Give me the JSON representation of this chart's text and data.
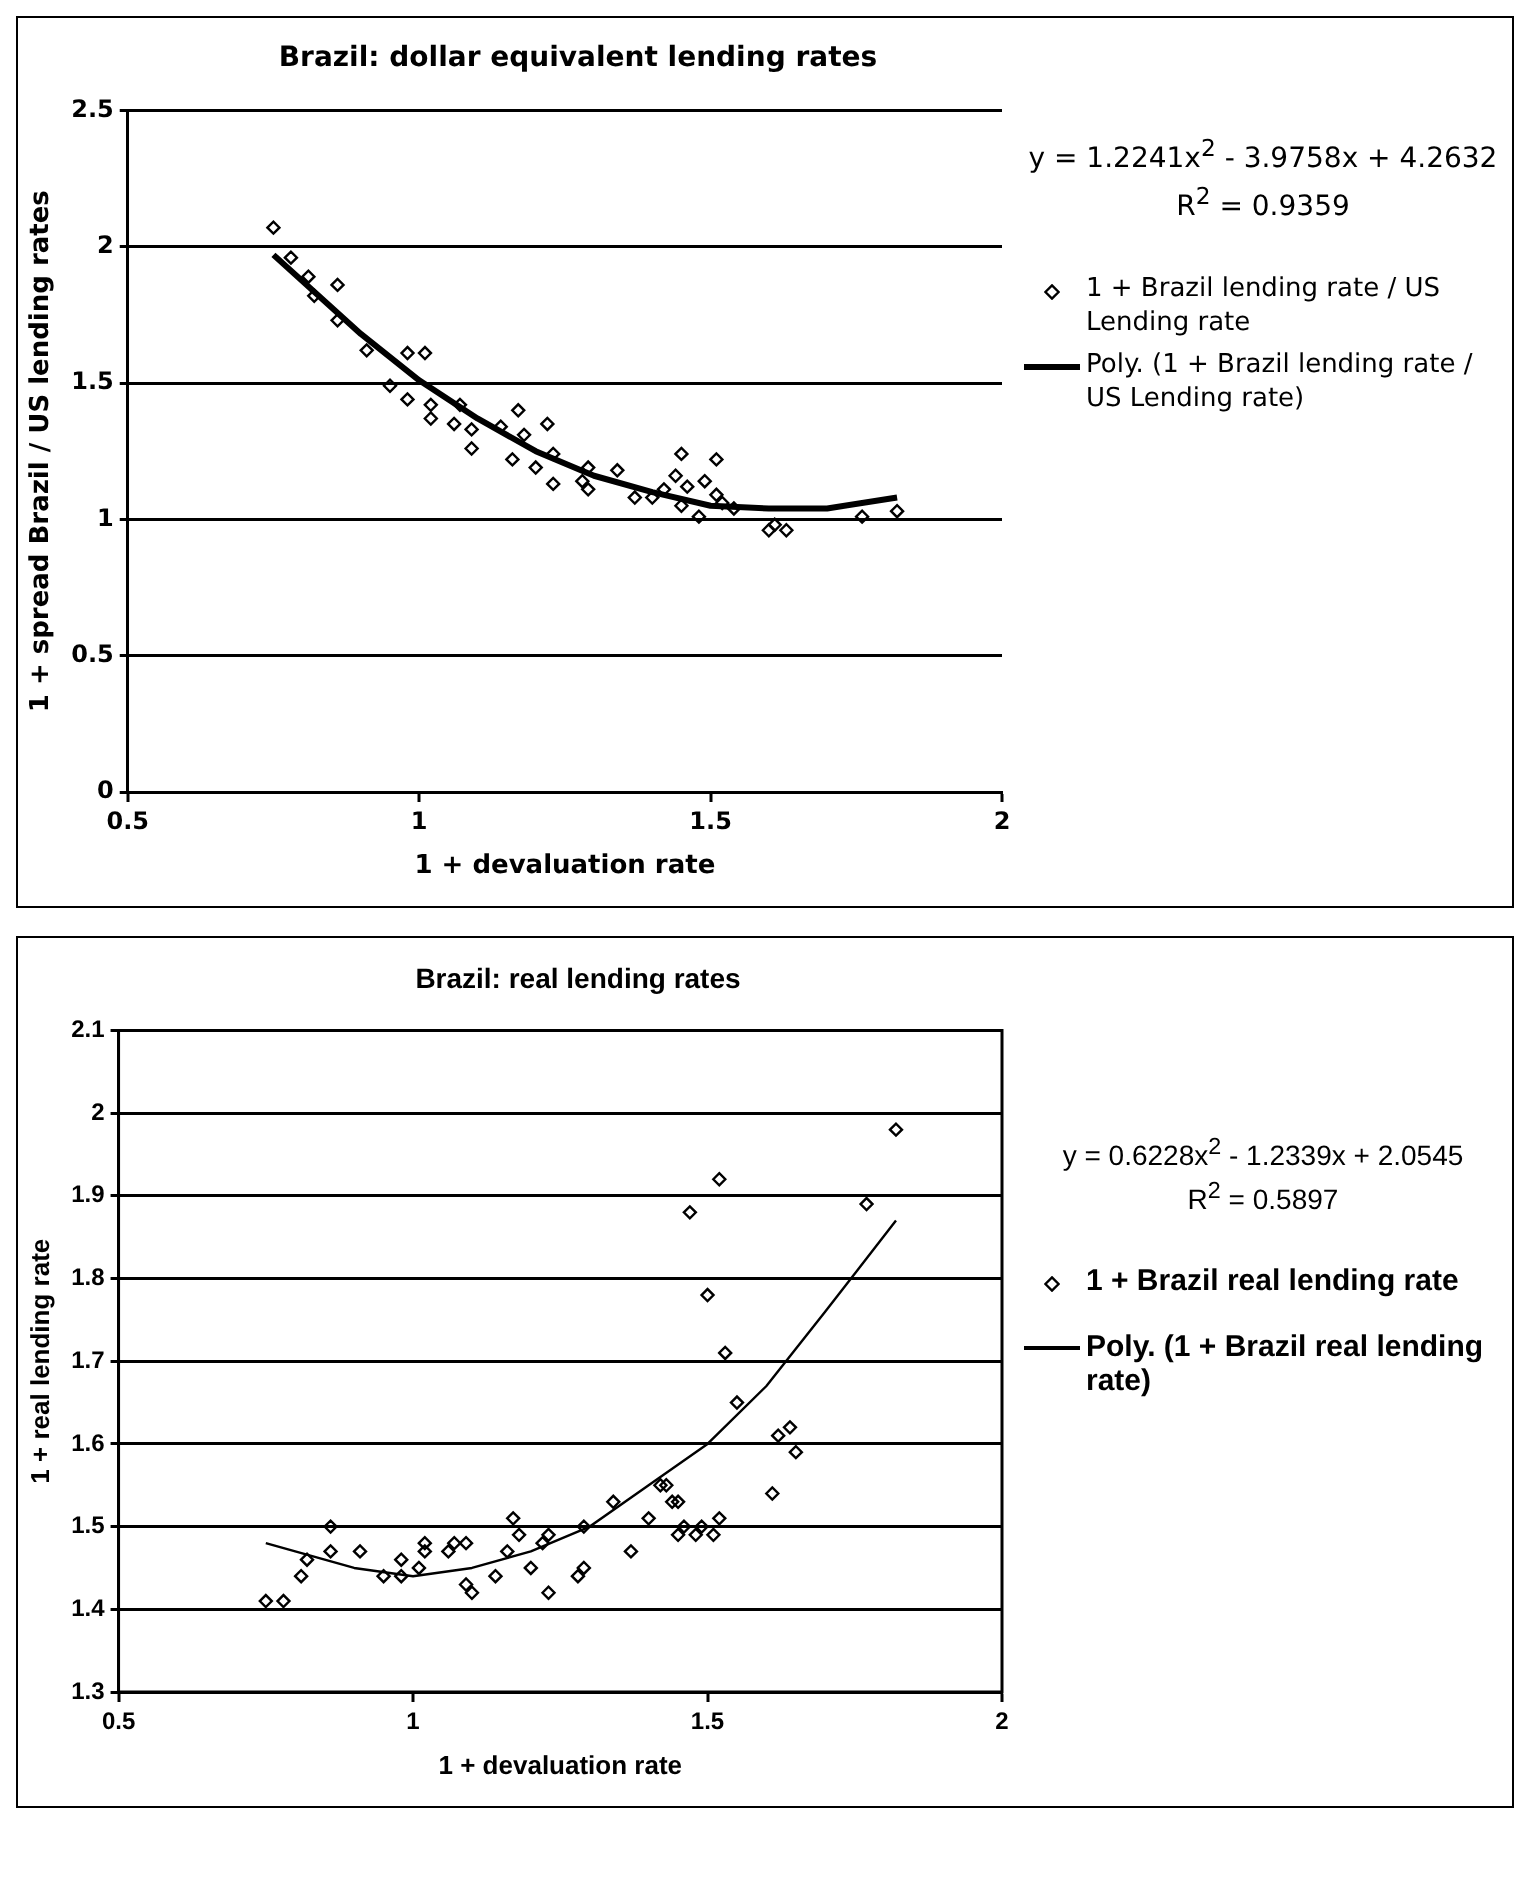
{
  "chart_data": [
    {
      "type": "scatter",
      "title": "Brazil: dollar equivalent lending rates",
      "xlabel": "1 + devaluation rate",
      "ylabel": "1 + spread Brazil / US lending rates",
      "annotations": [
        "y = 1.2241x$^{2}$ - 3.9758x + 4.2632",
        "R$^{2}$ = 0.9359"
      ],
      "xlim": [
        0.5,
        2
      ],
      "xticks": [
        0.5,
        1,
        1.5,
        2
      ],
      "ylim": [
        0,
        2.5
      ],
      "yticks": [
        0,
        0.5,
        1,
        1.5,
        2,
        2.5
      ],
      "grid": "y",
      "legend": "right",
      "marker": "diamond",
      "series": [
        {
          "name": "1 + Brazil lending rate / US Lending rate",
          "color": "#000000",
          "x": [
            0.75,
            0.78,
            0.81,
            0.82,
            0.86,
            0.86,
            0.91,
            0.98,
            1.01,
            0.95,
            0.98,
            1.02,
            1.02,
            1.07,
            1.06,
            1.09,
            1.09,
            1.14,
            1.17,
            1.18,
            1.16,
            1.2,
            1.22,
            1.23,
            1.23,
            1.28,
            1.29,
            1.29,
            1.34,
            1.37,
            1.4,
            1.42,
            1.44,
            1.45,
            1.46,
            1.45,
            1.48,
            1.49,
            1.51,
            1.51,
            1.52,
            1.54,
            1.6,
            1.61,
            1.63,
            1.76,
            1.82
          ],
          "values": [
            2.07,
            1.96,
            1.89,
            1.82,
            1.86,
            1.73,
            1.62,
            1.61,
            1.61,
            1.49,
            1.44,
            1.42,
            1.37,
            1.42,
            1.35,
            1.33,
            1.26,
            1.34,
            1.4,
            1.31,
            1.22,
            1.19,
            1.35,
            1.24,
            1.13,
            1.14,
            1.19,
            1.11,
            1.18,
            1.08,
            1.08,
            1.11,
            1.16,
            1.24,
            1.12,
            1.05,
            1.01,
            1.14,
            1.22,
            1.09,
            1.06,
            1.04,
            0.96,
            0.98,
            0.96,
            1.01,
            1.03
          ]
        },
        {
          "name": "Poly. (1 + Brazil lending rate / US Lending rate)",
          "type": "line",
          "color": "#000000",
          "marker": "none",
          "x": [
            0.75,
            0.9,
            1.0,
            1.1,
            1.2,
            1.3,
            1.4,
            1.5,
            1.6,
            1.7,
            1.82
          ],
          "values": [
            1.97,
            1.68,
            1.51,
            1.37,
            1.25,
            1.16,
            1.1,
            1.05,
            1.04,
            1.04,
            1.08
          ]
        }
      ]
    },
    {
      "type": "scatter",
      "title": "Brazil: real lending rates",
      "xlabel": "1 + devaluation rate",
      "ylabel": "1 + real lending rate",
      "annotations": [
        "y = 0.6228x$^{2}$ - 1.2339x + 2.0545",
        "R$^{2}$ = 0.5897"
      ],
      "xlim": [
        0.5,
        2
      ],
      "xticks": [
        0.5,
        1,
        1.5,
        2
      ],
      "ylim": [
        1.3,
        2.1
      ],
      "yticks": [
        1.3,
        1.4,
        1.5,
        1.6,
        1.7,
        1.8,
        1.9,
        2,
        2.1
      ],
      "grid": "y",
      "legend": "right",
      "marker": "diamond",
      "series": [
        {
          "name": "1 + Brazil real lending rate",
          "color": "#000000",
          "x": [
            0.75,
            0.78,
            0.81,
            0.82,
            0.86,
            0.86,
            0.91,
            0.95,
            0.98,
            0.98,
            1.01,
            1.02,
            1.02,
            1.06,
            1.07,
            1.09,
            1.09,
            1.1,
            1.14,
            1.17,
            1.18,
            1.16,
            1.2,
            1.22,
            1.23,
            1.23,
            1.28,
            1.29,
            1.29,
            1.34,
            1.37,
            1.4,
            1.42,
            1.44,
            1.45,
            1.46,
            1.45,
            1.48,
            1.49,
            1.51,
            1.52,
            1.52,
            1.47,
            1.77,
            1.5,
            1.53,
            1.55,
            1.62,
            1.64,
            1.65,
            1.61,
            1.43,
            1.82
          ],
          "values": [
            1.41,
            1.41,
            1.44,
            1.46,
            1.5,
            1.47,
            1.47,
            1.44,
            1.44,
            1.46,
            1.45,
            1.48,
            1.47,
            1.47,
            1.48,
            1.48,
            1.43,
            1.42,
            1.44,
            1.51,
            1.49,
            1.47,
            1.45,
            1.48,
            1.42,
            1.49,
            1.44,
            1.5,
            1.45,
            1.53,
            1.47,
            1.51,
            1.55,
            1.53,
            1.53,
            1.5,
            1.49,
            1.49,
            1.5,
            1.49,
            1.51,
            1.92,
            1.88,
            1.89,
            1.78,
            1.71,
            1.65,
            1.61,
            1.62,
            1.59,
            1.54,
            1.55,
            1.98
          ]
        },
        {
          "name": "Poly. (1 + Brazil real lending rate)",
          "type": "line",
          "color": "#000000",
          "marker": "none",
          "x": [
            0.75,
            0.9,
            1.0,
            1.1,
            1.2,
            1.3,
            1.4,
            1.5,
            1.6,
            1.7,
            1.82
          ],
          "values": [
            1.48,
            1.45,
            1.44,
            1.45,
            1.47,
            1.5,
            1.55,
            1.6,
            1.67,
            1.76,
            1.87
          ]
        }
      ]
    }
  ]
}
